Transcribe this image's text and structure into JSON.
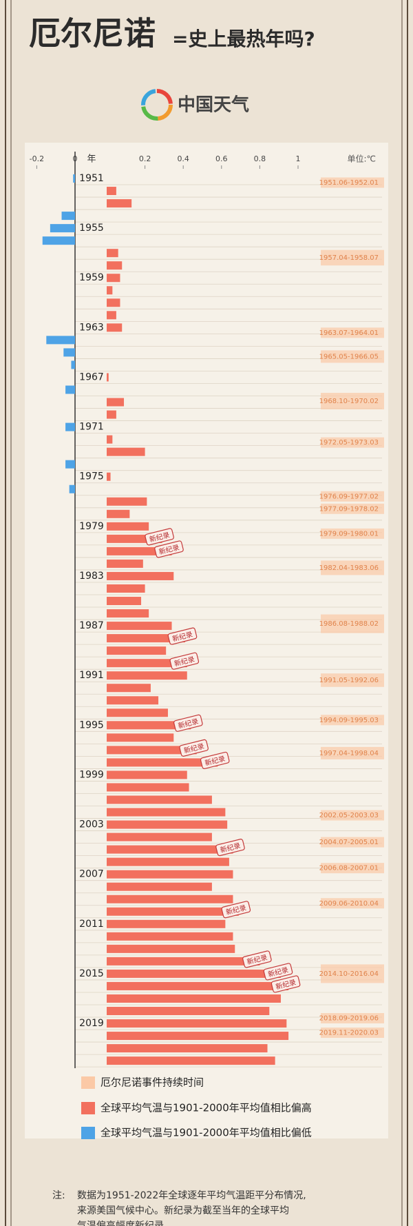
{
  "header": {
    "title": "厄尔尼诺",
    "subtitle": "=史上最热年吗?",
    "logo": "中国天气"
  },
  "chart_data": {
    "type": "bar",
    "orientation": "horizontal",
    "unit": "单位:℃",
    "category_header": "年",
    "categories": [
      "1951",
      null,
      null,
      null,
      "1955",
      null,
      null,
      null,
      "1959",
      null,
      null,
      null,
      "1963",
      null,
      null,
      null,
      "1967",
      null,
      null,
      null,
      "1971",
      null,
      null,
      null,
      "1975",
      null,
      null,
      null,
      "1979",
      null,
      null,
      null,
      "1983",
      null,
      null,
      null,
      "1987",
      null,
      null,
      null,
      "1991",
      null,
      null,
      null,
      "1995",
      null,
      null,
      null,
      "1999",
      null,
      null,
      null,
      "2003",
      null,
      null,
      null,
      "2007",
      null,
      null,
      null,
      "2011",
      null,
      null,
      null,
      "2015",
      null,
      null,
      null,
      "2019",
      null,
      null,
      null
    ],
    "series": [
      {
        "name": "全球平均气温与1901-2000年平均值相比偏高",
        "color": "#f2705e",
        "values": [
          null,
          0.05,
          0.13,
          null,
          null,
          null,
          0.06,
          0.08,
          0.07,
          0.03,
          0.07,
          0.05,
          0.08,
          null,
          null,
          null,
          0.01,
          null,
          0.09,
          0.05,
          null,
          0.03,
          0.2,
          null,
          0.02,
          null,
          0.21,
          0.12,
          0.22,
          0.29,
          0.34,
          0.19,
          0.35,
          0.2,
          0.18,
          0.22,
          0.34,
          0.41,
          0.31,
          0.42,
          0.42,
          0.23,
          0.27,
          0.32,
          0.44,
          0.35,
          0.47,
          0.58,
          0.42,
          0.43,
          0.55,
          0.62,
          0.63,
          0.55,
          0.66,
          0.64,
          0.66,
          0.55,
          0.66,
          0.69,
          0.62,
          0.66,
          0.67,
          0.8,
          0.91,
          0.95,
          0.91,
          0.85,
          0.94,
          0.95,
          0.84,
          0.88
        ]
      },
      {
        "name": "全球平均气温与1901-2000年平均值相比偏低",
        "color": "#4ea3e6",
        "values": [
          -0.01,
          null,
          null,
          -0.07,
          -0.13,
          -0.17,
          null,
          null,
          null,
          null,
          null,
          null,
          null,
          -0.15,
          -0.06,
          -0.02,
          null,
          -0.05,
          null,
          null,
          -0.05,
          null,
          null,
          -0.05,
          null,
          -0.03,
          null,
          null,
          null,
          null,
          null,
          null,
          null,
          null,
          null,
          null,
          null,
          null,
          null,
          null,
          null,
          null,
          null,
          null,
          null,
          null,
          null,
          null,
          null,
          null,
          null,
          null,
          null,
          null,
          null,
          null,
          null,
          null,
          null,
          null,
          null,
          null,
          null,
          null,
          null,
          null,
          null,
          null,
          null,
          null,
          null,
          null
        ]
      }
    ],
    "record_labels": [
      null,
      null,
      null,
      null,
      null,
      null,
      null,
      null,
      null,
      null,
      null,
      null,
      null,
      null,
      null,
      null,
      null,
      null,
      null,
      null,
      null,
      null,
      null,
      null,
      null,
      null,
      null,
      null,
      null,
      "新纪录",
      "新纪录",
      null,
      null,
      null,
      null,
      null,
      null,
      "新纪录",
      null,
      "新纪录",
      null,
      null,
      null,
      null,
      "新纪录",
      null,
      "新纪录",
      "新纪录",
      null,
      null,
      null,
      null,
      null,
      null,
      "新纪录",
      null,
      null,
      null,
      null,
      "新纪录",
      null,
      null,
      null,
      "新纪录",
      "新纪录",
      "新纪录",
      null,
      null,
      null,
      null,
      null,
      null
    ],
    "xlim": [
      -0.2,
      1
    ],
    "xticks": [
      -0.2,
      0,
      0.2,
      0.4,
      0.6,
      0.8,
      1
    ],
    "el_nino": {
      "name": "厄尔尼诺事件持续时间",
      "color": "#fbc9a6",
      "periods": [
        "1951.06-1952.01",
        "1957.04-1958.07",
        "1963.07-1964.01",
        "1965.05-1966.05",
        "1968.10-1970.02",
        "1972.05-1973.03",
        "1976.09-1977.02",
        "1977.09-1978.02",
        "1979.09-1980.01",
        "1982.04-1983.06",
        "1986.08-1988.02",
        "1991.05-1992.06",
        "1994.09-1995.03",
        "1997.04-1998.04",
        "2002.05-2003.03",
        "2004.07-2005.01",
        "2006.08-2007.01",
        "2009.06-2010.04",
        "2014.10-2016.04",
        "2018.09-2019.06",
        "2019.11-2020.03"
      ]
    }
  },
  "note": {
    "label": "注:",
    "lines": [
      "数据为1951-2022年全球逐年平均气温距平分布情况,",
      "来源美国气候中心。新纪录为截至当年的全球平均",
      "气温偏高幅度新纪录。"
    ]
  }
}
